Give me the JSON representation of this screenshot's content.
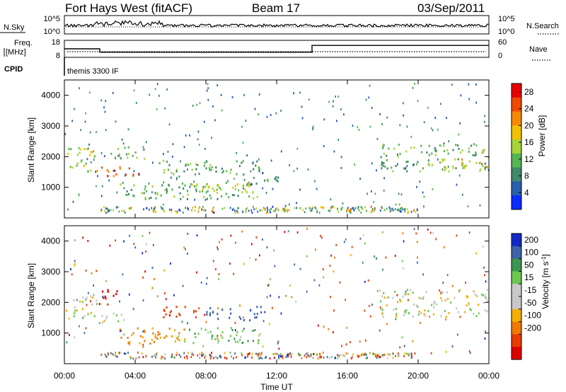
{
  "header": {
    "station": "Fort Hays West (fitACF)",
    "beam": "Beam 17",
    "date": "03/Sep/2011"
  },
  "noise_panel": {
    "left_label": "N.Sky",
    "right_label": "N.Search",
    "left_ticks": [
      "10^5",
      "10^0"
    ],
    "right_ticks": [
      "10^5",
      "10^0"
    ]
  },
  "freq_panel": {
    "left_label_1": "Freq.",
    "left_label_2": "[MHz]",
    "right_label": "Nave",
    "left_ticks": [
      "18",
      "8"
    ],
    "right_ticks": [
      "60",
      "0"
    ],
    "cpid_label": "CPID",
    "cpid_value": "themis 3300 IF"
  },
  "axes": {
    "ylabel": "Slant Range [km]",
    "xlabel": "Time UT",
    "yticks": [
      "4000",
      "3000",
      "2000",
      "1000"
    ],
    "xticks": [
      "00:00",
      "04:00",
      "08:00",
      "12:00",
      "16:00",
      "20:00",
      "00:00"
    ]
  },
  "colors": {
    "power_scale": [
      "#0a2cff",
      "#2a5fb0",
      "#3f8a6a",
      "#55b455",
      "#a8d43a",
      "#f2c100",
      "#f58a00",
      "#f04a00",
      "#e80000"
    ],
    "velocity_scale": [
      "#1428c8",
      "#3c64aa",
      "#3c9650",
      "#6ec850",
      "#c8c8c8",
      "#c8c8c8",
      "#f2b000",
      "#f07800",
      "#e83c00",
      "#e00000"
    ]
  },
  "chart_data": [
    {
      "type": "line",
      "title": "Fort Hays West (fitACF)  Beam 17  03/Sep/2011",
      "series": [
        {
          "name": "N.Sky",
          "y_scale": "log",
          "ylim": [
            1,
            100000
          ]
        },
        {
          "name": "N.Search",
          "y_scale": "log",
          "ylim": [
            1,
            100000
          ]
        }
      ]
    },
    {
      "type": "line",
      "series": [
        {
          "name": "Freq. [MHz]",
          "ylim": [
            8,
            18
          ],
          "x": [
            "00:00",
            "02:00",
            "02:00",
            "14:00",
            "14:00",
            "24:00"
          ],
          "values": [
            13,
            13,
            11,
            11,
            15,
            15
          ]
        },
        {
          "name": "Nave",
          "ylim": [
            0,
            60
          ]
        }
      ],
      "annotation": "themis 3300 IF"
    },
    {
      "type": "heatmap",
      "xlabel": "Time UT",
      "ylabel": "Slant Range [km]",
      "xlim": [
        "00:00",
        "24:00"
      ],
      "ylim": [
        0,
        4500
      ],
      "colorbar": {
        "label": "Power [dB]",
        "ticks": [
          4,
          8,
          12,
          16,
          20,
          24,
          28
        ],
        "range": [
          0,
          30
        ]
      },
      "regions": [
        {
          "t_start": 0.0,
          "t_end": 1.8,
          "r_min": 1500,
          "r_max": 2300,
          "level": 16
        },
        {
          "t_start": 1.8,
          "t_end": 4.2,
          "r_min": 1300,
          "r_max": 1650,
          "level": 26
        },
        {
          "t_start": 2.5,
          "t_end": 4.5,
          "r_min": 1900,
          "r_max": 2300,
          "level": 12
        },
        {
          "t_start": 5.3,
          "t_end": 11.2,
          "r_min": 1400,
          "r_max": 1850,
          "level": 12
        },
        {
          "t_start": 3.0,
          "t_end": 11.0,
          "r_min": 600,
          "r_max": 1150,
          "level": 11
        },
        {
          "t_start": 6.5,
          "t_end": 10.5,
          "r_min": 750,
          "r_max": 1100,
          "level": 16
        },
        {
          "t_start": 11.0,
          "t_end": 12.3,
          "r_min": 1100,
          "r_max": 1500,
          "level": 9
        },
        {
          "t_start": 17.8,
          "t_end": 24.0,
          "r_min": 1500,
          "r_max": 2400,
          "level": 11
        },
        {
          "t_start": 21.0,
          "t_end": 24.0,
          "r_min": 1600,
          "r_max": 1900,
          "level": 18
        }
      ]
    },
    {
      "type": "heatmap",
      "xlabel": "Time UT",
      "ylabel": "Slant Range [km]",
      "xlim": [
        "00:00",
        "24:00"
      ],
      "ylim": [
        0,
        4500
      ],
      "colorbar": {
        "label": "Velocity [m s^-1]",
        "ticks": [
          200,
          100,
          50,
          15,
          -15,
          -50,
          -100,
          -200
        ],
        "range": [
          -250,
          250
        ]
      },
      "regions": [
        {
          "t_start": 0.0,
          "t_end": 1.8,
          "r_min": 1500,
          "r_max": 2200,
          "velocity": 0
        },
        {
          "t_start": 1.8,
          "t_end": 3.5,
          "r_min": 1300,
          "r_max": 1650,
          "velocity": 0
        },
        {
          "t_start": 1.8,
          "t_end": 3.0,
          "r_min": 1900,
          "r_max": 2400,
          "velocity": -220
        },
        {
          "t_start": 5.5,
          "t_end": 8.0,
          "r_min": 1500,
          "r_max": 1850,
          "velocity": -180
        },
        {
          "t_start": 8.0,
          "t_end": 11.3,
          "r_min": 1400,
          "r_max": 1850,
          "velocity": 150
        },
        {
          "t_start": 3.0,
          "t_end": 7.0,
          "r_min": 600,
          "r_max": 1150,
          "velocity": -60
        },
        {
          "t_start": 7.0,
          "t_end": 11.0,
          "r_min": 600,
          "r_max": 1150,
          "velocity": 40
        },
        {
          "t_start": 17.8,
          "t_end": 24.0,
          "r_min": 1500,
          "r_max": 2400,
          "velocity": 0
        }
      ]
    }
  ]
}
